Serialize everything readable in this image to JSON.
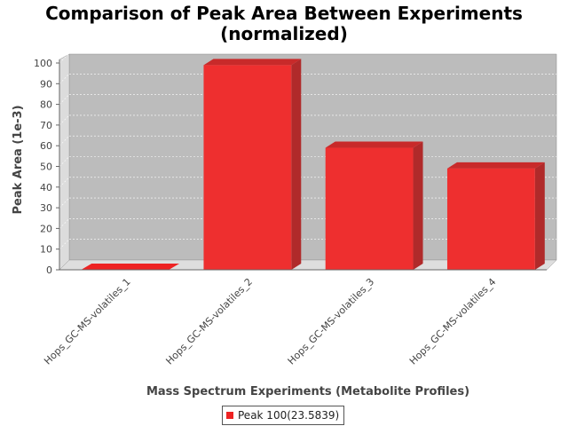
{
  "chart_data": {
    "type": "bar",
    "title": "Comparison of Peak Area Between Experiments",
    "subtitle": "(normalized)",
    "xlabel": "Mass Spectrum Experiments (Metabolite Profiles)",
    "ylabel": "Peak Area (1e-3)",
    "categories": [
      "Hops_GC-MS-volatiles_1",
      "Hops_GC-MS-volatiles_2",
      "Hops_GC-MS-volatiles_3",
      "Hops_GC-MS-volatiles_4"
    ],
    "series": [
      {
        "name": "Peak 100(23.5839)",
        "values": [
          0,
          99,
          59,
          49
        ],
        "color": "#ee2222"
      }
    ],
    "ylim": [
      0,
      100
    ],
    "yticks": [
      0,
      10,
      20,
      30,
      40,
      50,
      60,
      70,
      80,
      90,
      100
    ],
    "grid": true,
    "legend_position": "bottom",
    "plot_background": "#bcbcbc",
    "render": "3d"
  }
}
